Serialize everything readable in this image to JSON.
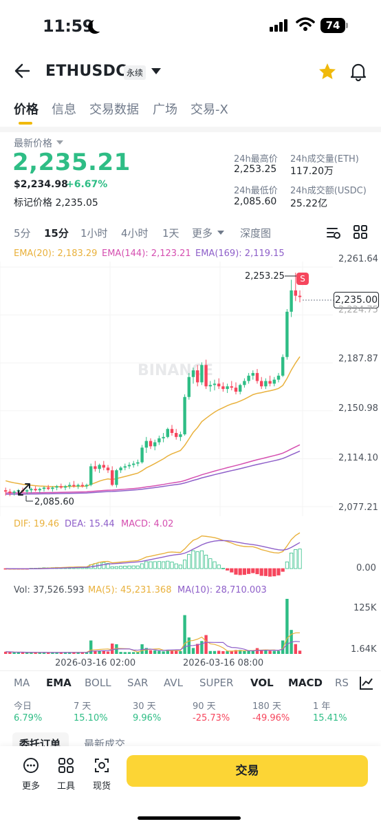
{
  "status": {
    "time": "11:59",
    "battery": "74"
  },
  "header": {
    "symbol": "ETHUSDC",
    "contract_tag": "永续"
  },
  "tabs": [
    "价格",
    "信息",
    "交易数据",
    "广场",
    "交易-X"
  ],
  "price": {
    "latest_label": "最新价格",
    "last": "2,235.21",
    "usd": "$2,234.98",
    "change": "+6.67%",
    "mark_label": "标记价格",
    "mark": "2,235.05"
  },
  "stats": {
    "high_label": "24h最高价",
    "high": "2,253.25",
    "vol_eth_label": "24h成交量(ETH)",
    "vol_eth": "117.20万",
    "low_label": "24h最低价",
    "low": "2,085.60",
    "vol_usdc_label": "24h成交额(USDC)",
    "vol_usdc": "25.22亿"
  },
  "intervals": [
    "5分",
    "15分",
    "1小时",
    "4小时",
    "1天",
    "更多",
    "深度图"
  ],
  "ema": {
    "ema20": "EMA(20): 2,183.29",
    "ema144": "EMA(144): 2,123.21",
    "ema169": "EMA(169): 2,119.15"
  },
  "chart_data": {
    "type": "candlestick",
    "y_ticks": [
      "2,261.64",
      "2,224.75",
      "2,187.87",
      "2,150.98",
      "2,114.10",
      "2,077.21"
    ],
    "ylim": [
      2077.21,
      2261.64
    ],
    "x_ticks": [
      "2026-03-16 02:00",
      "2026-03-16 08:00"
    ],
    "last_price": "2,235.00",
    "high_marker": "2,253.25",
    "low_marker": "2,085.60",
    "sell_marker": "S",
    "watermark": "BINANCE",
    "candles": [
      [
        2090,
        2092,
        2086,
        2089
      ],
      [
        2089,
        2091,
        2085.6,
        2088
      ],
      [
        2088,
        2090,
        2086,
        2089
      ],
      [
        2089,
        2091,
        2087,
        2090
      ],
      [
        2090,
        2092,
        2088,
        2089
      ],
      [
        2089,
        2091,
        2087,
        2090
      ],
      [
        2090,
        2092,
        2088,
        2091
      ],
      [
        2091,
        2093,
        2089,
        2090
      ],
      [
        2090,
        2092,
        2088,
        2091
      ],
      [
        2091,
        2093,
        2089,
        2092
      ],
      [
        2092,
        2094,
        2090,
        2091
      ],
      [
        2091,
        2093,
        2089,
        2092
      ],
      [
        2092,
        2094,
        2090,
        2093
      ],
      [
        2093,
        2095,
        2091,
        2092
      ],
      [
        2092,
        2094,
        2090,
        2093
      ],
      [
        2093,
        2096,
        2091,
        2094
      ],
      [
        2094,
        2097,
        2092,
        2093
      ],
      [
        2093,
        2095,
        2091,
        2094
      ],
      [
        2094,
        2096,
        2092,
        2093
      ],
      [
        2093,
        2095,
        2091,
        2094
      ],
      [
        2094,
        2110,
        2093,
        2108
      ],
      [
        2108,
        2112,
        2104,
        2106
      ],
      [
        2106,
        2110,
        2103,
        2109
      ],
      [
        2109,
        2112,
        2105,
        2107
      ],
      [
        2107,
        2109,
        2103,
        2105
      ],
      [
        2105,
        2108,
        2093,
        2094
      ],
      [
        2094,
        2106,
        2092,
        2105
      ],
      [
        2105,
        2108,
        2103,
        2107
      ],
      [
        2107,
        2110,
        2105,
        2108
      ],
      [
        2108,
        2111,
        2106,
        2109
      ],
      [
        2109,
        2112,
        2107,
        2110
      ],
      [
        2110,
        2113,
        2108,
        2111
      ],
      [
        2111,
        2124,
        2110,
        2122
      ],
      [
        2122,
        2130,
        2118,
        2127
      ],
      [
        2127,
        2129,
        2121,
        2123
      ],
      [
        2123,
        2128,
        2120,
        2126
      ],
      [
        2126,
        2131,
        2124,
        2129
      ],
      [
        2129,
        2133,
        2126,
        2130
      ],
      [
        2130,
        2137,
        2129,
        2136
      ],
      [
        2136,
        2139,
        2131,
        2133
      ],
      [
        2133,
        2136,
        2128,
        2130
      ],
      [
        2130,
        2134,
        2127,
        2132
      ],
      [
        2132,
        2162,
        2131,
        2160
      ],
      [
        2160,
        2178,
        2158,
        2175
      ],
      [
        2175,
        2182,
        2170,
        2180
      ],
      [
        2180,
        2184,
        2168,
        2171
      ],
      [
        2171,
        2186,
        2169,
        2184
      ],
      [
        2184,
        2188,
        2166,
        2168
      ],
      [
        2168,
        2172,
        2164,
        2169
      ],
      [
        2169,
        2173,
        2165,
        2170
      ],
      [
        2170,
        2174,
        2166,
        2168
      ],
      [
        2168,
        2171,
        2164,
        2166
      ],
      [
        2166,
        2170,
        2163,
        2168
      ],
      [
        2168,
        2172,
        2165,
        2167
      ],
      [
        2167,
        2171,
        2162,
        2164
      ],
      [
        2164,
        2170,
        2162,
        2169
      ],
      [
        2169,
        2174,
        2167,
        2172
      ],
      [
        2172,
        2178,
        2170,
        2176
      ],
      [
        2176,
        2180,
        2173,
        2178
      ],
      [
        2178,
        2181,
        2170,
        2172
      ],
      [
        2172,
        2175,
        2166,
        2168
      ],
      [
        2168,
        2174,
        2166,
        2172
      ],
      [
        2172,
        2176,
        2168,
        2170
      ],
      [
        2170,
        2175,
        2168,
        2173
      ],
      [
        2173,
        2178,
        2171,
        2176
      ],
      [
        2176,
        2192,
        2175,
        2190
      ],
      [
        2190,
        2226,
        2188,
        2224
      ],
      [
        2224,
        2248,
        2220,
        2240
      ],
      [
        2240,
        2253.25,
        2232,
        2236
      ],
      [
        2236,
        2240,
        2231,
        2235
      ]
    ]
  },
  "macd": {
    "dif": "DIF: 19.46",
    "dea": "DEA: 15.44",
    "macd": "MACD: 4.02",
    "zero": "0.00"
  },
  "volume": {
    "vol": "Vol: 37,526.593",
    "ma5": "MA(5): 45,231.368",
    "ma10": "MA(10): 28,710.003",
    "top": "125K",
    "bottom": "1.64K"
  },
  "indicators": [
    "MA",
    "EMA",
    "BOLL",
    "SAR",
    "AVL",
    "SUPER",
    "VOL",
    "MACD",
    "RSI"
  ],
  "performance": [
    {
      "label": "今日",
      "value": "6.79%"
    },
    {
      "label": "7 天",
      "value": "15.10%"
    },
    {
      "label": "30 天",
      "value": "9.96%"
    },
    {
      "label": "90 天",
      "value": "-25.73%"
    },
    {
      "label": "180 天",
      "value": "-49.96%"
    },
    {
      "label": "1 年",
      "value": "15.41%"
    }
  ],
  "bottom": {
    "peek_tab1": "委托订单",
    "peek_tab2": "最新成交",
    "nav": [
      "更多",
      "工具",
      "现货"
    ],
    "trade": "交易"
  },
  "colors": {
    "up": "#2ebd85",
    "down": "#f6465d",
    "accent": "#fcd535",
    "ema20": "#e9b13c",
    "ema144": "#d54fb0",
    "ema169": "#8e5fc9"
  }
}
